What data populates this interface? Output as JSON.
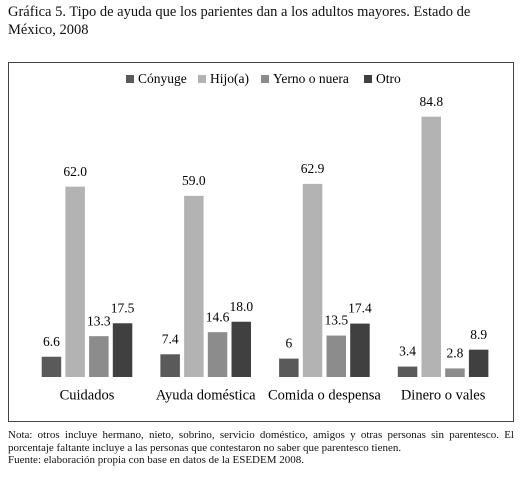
{
  "chart_data": {
    "type": "bar",
    "title": "Gráfica 5. Tipo de ayuda que los parientes dan a los adultos mayores. Estado de México, 2008",
    "categories": [
      "Cuidados",
      "Ayuda doméstica",
      "Comida o despensa",
      "Dinero o vales"
    ],
    "series": [
      {
        "name": "Cónyuge",
        "color": "#5a5a5a",
        "values": [
          6.6,
          7.4,
          6.0,
          3.4
        ]
      },
      {
        "name": "Hijo(a)",
        "color": "#b3b3b3",
        "values": [
          62.0,
          59.0,
          62.9,
          84.8
        ],
        "value_labels": [
          "62.0",
          "59.0",
          "62.9",
          "84.8"
        ]
      },
      {
        "name": "Yerno o nuera",
        "color": "#8c8c8c",
        "values": [
          13.3,
          14.6,
          13.5,
          2.8
        ]
      },
      {
        "name": "Otro",
        "color": "#404040",
        "values": [
          17.5,
          18.0,
          17.4,
          8.9
        ],
        "value_labels": [
          "17.5",
          "18.0",
          "17.4",
          "8.9"
        ]
      }
    ],
    "legend": "top",
    "notes": [
      "Nota: otros incluye hermano, nieto, sobrino, servicio doméstico, amigos y otras personas sin parentesco. El porcentaje faltante incluye a las personas que contestaron no saber que parentesco tienen.",
      "Fuente: elaboración propia con base en datos de la ESEDEM 2008."
    ]
  }
}
